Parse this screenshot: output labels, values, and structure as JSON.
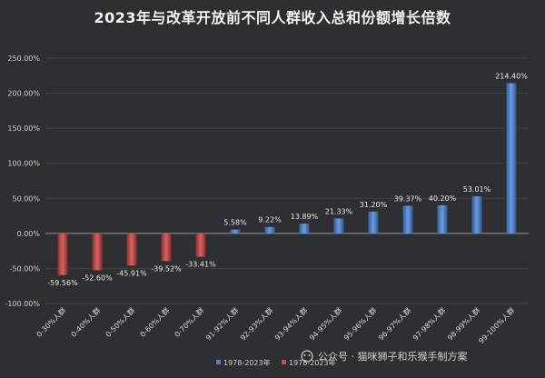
{
  "chart_data": {
    "type": "bar",
    "title": "2023年与改革开放前不同人群收入总和份额增长倍数",
    "categories": [
      "0-30%人群",
      "0-40%人群",
      "0-50%人群",
      "0-60%人群",
      "0-70%人群",
      "91-92%人群",
      "92-93%人群",
      "93-94%人群",
      "94-95%人群",
      "95-96%人群",
      "96-97%人群",
      "97-98%人群",
      "98-99%人群",
      "99-100%人群"
    ],
    "values": [
      -59.56,
      -52.6,
      -45.91,
      -39.52,
      -33.41,
      5.58,
      9.22,
      13.89,
      21.33,
      31.2,
      39.37,
      40.2,
      53.01,
      214.4
    ],
    "value_labels": [
      "-59.56%",
      "-52.60%",
      "-45.91%",
      "-39.52%",
      "-33.41%",
      "5.58%",
      "9.22%",
      "13.89%",
      "21.33%",
      "31.20%",
      "39.37%",
      "40.20%",
      "53.01%",
      "214.40%"
    ],
    "yticks": [
      250,
      200,
      150,
      100,
      50,
      0,
      -50,
      -100
    ],
    "ytick_labels": [
      "250.00%",
      "200.00%",
      "150.00%",
      "100.00%",
      "50.00%",
      "0.00%",
      "-50.00%",
      "-100.00%"
    ],
    "ylim": [
      -100,
      250
    ],
    "grid": true,
    "series": [
      {
        "name": "1978-2023年",
        "color": "#4f81c7"
      },
      {
        "name": "1978-2023年",
        "color": "#c0504d"
      }
    ],
    "legend_position": "bottom-center"
  },
  "watermark": "公众号 · 猫咪狮子和乐猴手制方案"
}
